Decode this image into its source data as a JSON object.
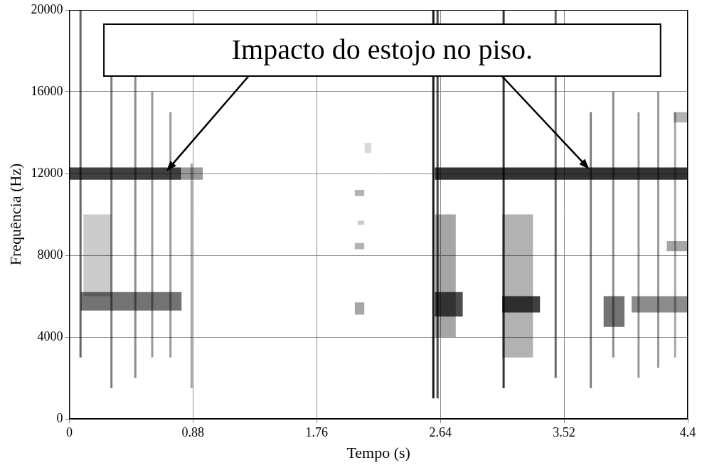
{
  "chart_data": {
    "type": "spectrogram",
    "x_label": "Tempo (s)",
    "y_label": "Frequência (Hz)",
    "xlim": [
      0,
      4.4
    ],
    "xticks": [
      0,
      0.88,
      1.76,
      2.64,
      3.52,
      4.4
    ],
    "ylim": [
      0,
      20000
    ],
    "yticks": [
      0,
      4000,
      8000,
      12000,
      16000,
      20000
    ],
    "grid": true,
    "color": "#000000",
    "annotation": {
      "text": "Impacto do estojo no piso.",
      "points": [
        {
          "x": 0.69,
          "y": 12100
        },
        {
          "x": 3.7,
          "y": 12200
        }
      ]
    },
    "bands": [
      {
        "t_start": 0.0,
        "t_end": 0.8,
        "f_low": 11700,
        "f_high": 12300,
        "level": 0.75
      },
      {
        "t_start": 0.8,
        "t_end": 0.95,
        "f_low": 11700,
        "f_high": 12300,
        "level": 0.4
      },
      {
        "t_start": 0.08,
        "t_end": 0.8,
        "f_low": 5300,
        "f_high": 6200,
        "level": 0.55
      },
      {
        "t_start": 0.1,
        "t_end": 0.3,
        "f_low": 6000,
        "f_high": 10000,
        "level": 0.2
      },
      {
        "t_start": 2.6,
        "t_end": 4.4,
        "f_low": 11700,
        "f_high": 12300,
        "level": 0.8
      },
      {
        "t_start": 2.6,
        "t_end": 2.8,
        "f_low": 5000,
        "f_high": 6200,
        "level": 0.7
      },
      {
        "t_start": 2.6,
        "t_end": 2.75,
        "f_low": 4000,
        "f_high": 10000,
        "level": 0.35
      },
      {
        "t_start": 3.08,
        "t_end": 3.35,
        "f_low": 5200,
        "f_high": 6000,
        "level": 0.75
      },
      {
        "t_start": 3.08,
        "t_end": 3.3,
        "f_low": 3000,
        "f_high": 10000,
        "level": 0.3
      },
      {
        "t_start": 3.8,
        "t_end": 3.95,
        "f_low": 4500,
        "f_high": 6000,
        "level": 0.55
      },
      {
        "t_start": 4.0,
        "t_end": 4.4,
        "f_low": 5200,
        "f_high": 6000,
        "level": 0.45
      },
      {
        "t_start": 4.25,
        "t_end": 4.4,
        "f_low": 8200,
        "f_high": 8700,
        "level": 0.35
      },
      {
        "t_start": 4.3,
        "t_end": 4.4,
        "f_low": 14500,
        "f_high": 15000,
        "level": 0.3
      },
      {
        "t_start": 2.03,
        "t_end": 2.1,
        "f_low": 10900,
        "f_high": 11200,
        "level": 0.3
      },
      {
        "t_start": 2.03,
        "t_end": 2.1,
        "f_low": 8300,
        "f_high": 8600,
        "level": 0.3
      },
      {
        "t_start": 2.03,
        "t_end": 2.1,
        "f_low": 5100,
        "f_high": 5700,
        "level": 0.35
      },
      {
        "t_start": 2.05,
        "t_end": 2.1,
        "f_low": 9500,
        "f_high": 9700,
        "level": 0.2
      },
      {
        "t_start": 2.1,
        "t_end": 2.15,
        "f_low": 13000,
        "f_high": 13500,
        "level": 0.15
      }
    ],
    "impulses": [
      {
        "time": 0.08,
        "f_low": 3000,
        "f_high": 20000,
        "level": 0.6
      },
      {
        "time": 0.3,
        "f_low": 1500,
        "f_high": 18000,
        "level": 0.5
      },
      {
        "time": 0.47,
        "f_low": 2000,
        "f_high": 17000,
        "level": 0.45
      },
      {
        "time": 0.59,
        "f_low": 3000,
        "f_high": 16000,
        "level": 0.4
      },
      {
        "time": 0.72,
        "f_low": 3000,
        "f_high": 15000,
        "level": 0.4
      },
      {
        "time": 0.87,
        "f_low": 1500,
        "f_high": 12500,
        "level": 0.35
      },
      {
        "time": 2.59,
        "f_low": 1000,
        "f_high": 20000,
        "level": 0.9
      },
      {
        "time": 2.62,
        "f_low": 1000,
        "f_high": 20000,
        "level": 0.7
      },
      {
        "time": 3.09,
        "f_low": 1500,
        "f_high": 20000,
        "level": 0.8
      },
      {
        "time": 3.46,
        "f_low": 2000,
        "f_high": 20000,
        "level": 0.6
      },
      {
        "time": 3.71,
        "f_low": 1500,
        "f_high": 15000,
        "level": 0.5
      },
      {
        "time": 3.87,
        "f_low": 3000,
        "f_high": 16000,
        "level": 0.45
      },
      {
        "time": 4.05,
        "f_low": 2000,
        "f_high": 15000,
        "level": 0.4
      },
      {
        "time": 4.19,
        "f_low": 2500,
        "f_high": 16000,
        "level": 0.4
      },
      {
        "time": 4.31,
        "f_low": 3000,
        "f_high": 15000,
        "level": 0.35
      }
    ]
  }
}
